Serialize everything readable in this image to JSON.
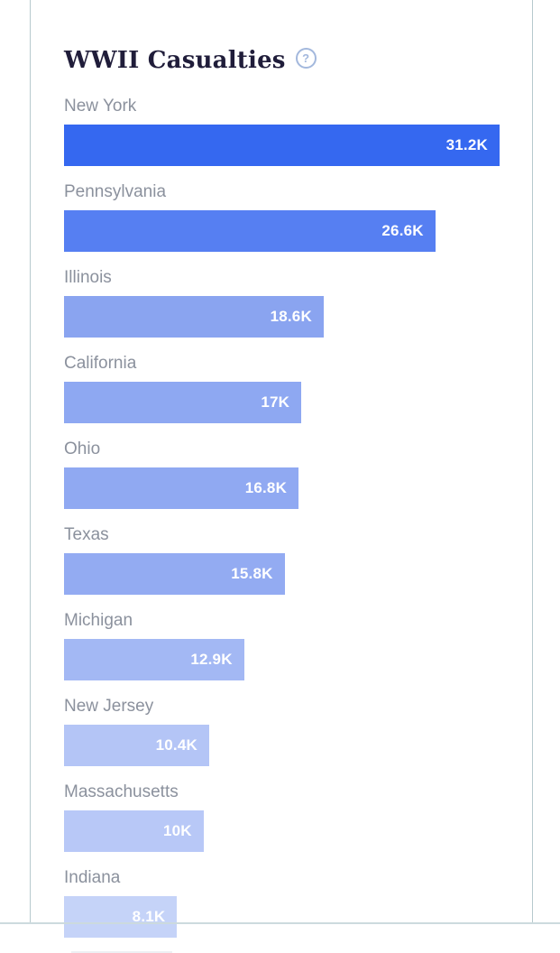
{
  "chart": {
    "title": "WWII Casualties",
    "help_icon_glyph": "?"
  },
  "chart_data": {
    "type": "bar",
    "orientation": "horizontal",
    "title": "WWII Casualties",
    "categories": [
      "New York",
      "Pennsylvania",
      "Illinois",
      "California",
      "Ohio",
      "Texas",
      "Michigan",
      "New Jersey",
      "Massachusetts",
      "Indiana"
    ],
    "values": [
      31200,
      26600,
      18600,
      17000,
      16800,
      15800,
      12900,
      10400,
      10000,
      8100
    ],
    "value_labels": [
      "31.2K",
      "26.6K",
      "18.6K",
      "17K",
      "16.8K",
      "15.8K",
      "12.9K",
      "10.4K",
      "10K",
      "8.1K"
    ],
    "xlim": [
      0,
      31200
    ],
    "legend": false,
    "grid": false,
    "bar_colors": [
      "#3568f0",
      "#567ff2",
      "#8aa4f0",
      "#8ea8f2",
      "#90a9f2",
      "#93abf2",
      "#a3b8f4",
      "#b4c5f6",
      "#b8c8f7",
      "#c5d3f8"
    ],
    "label_color": "#8b919d",
    "value_text_color": "#ffffff",
    "panel_border_color": "#b6c9cd"
  }
}
